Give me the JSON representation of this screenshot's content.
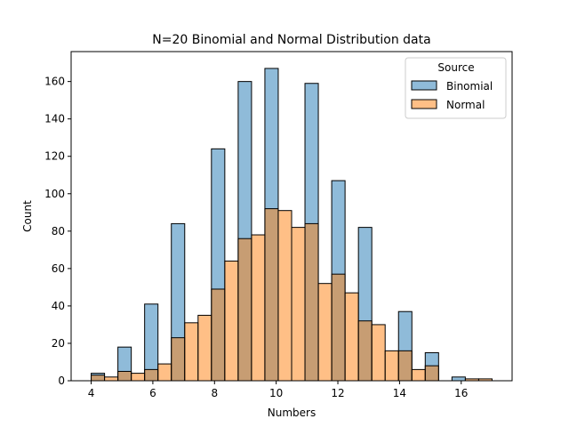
{
  "chart_data": {
    "type": "bar",
    "title": "N=20 Binomial and Normal Distribution data",
    "xlabel": "Numbers",
    "ylabel": "Count",
    "xlim": [
      3.35,
      17.65
    ],
    "ylim": [
      0,
      176
    ],
    "xticks": [
      4,
      6,
      8,
      10,
      12,
      14,
      16
    ],
    "yticks": [
      0,
      20,
      40,
      60,
      80,
      100,
      120,
      140,
      160
    ],
    "legend": {
      "title": "Source",
      "position": "top-right",
      "entries": [
        "Binomial",
        "Normal"
      ]
    },
    "grid": false,
    "bin_width": 0.4333,
    "series": [
      {
        "name": "Binomial",
        "color": "#1f77b4",
        "alpha": 0.5,
        "bins": [
          {
            "x": 4.0,
            "y": 4
          },
          {
            "x": 4.867,
            "y": 18
          },
          {
            "x": 5.733,
            "y": 41
          },
          {
            "x": 6.6,
            "y": 84
          },
          {
            "x": 7.9,
            "y": 124
          },
          {
            "x": 8.767,
            "y": 160
          },
          {
            "x": 9.633,
            "y": 167
          },
          {
            "x": 10.933,
            "y": 159
          },
          {
            "x": 11.8,
            "y": 107
          },
          {
            "x": 12.667,
            "y": 82
          },
          {
            "x": 13.967,
            "y": 37
          },
          {
            "x": 14.833,
            "y": 15
          },
          {
            "x": 15.7,
            "y": 2
          }
        ]
      },
      {
        "name": "Normal",
        "color": "#ff7f0e",
        "alpha": 0.5,
        "bins": [
          {
            "x": 4.0,
            "y": 3
          },
          {
            "x": 4.433,
            "y": 2
          },
          {
            "x": 4.867,
            "y": 5
          },
          {
            "x": 5.3,
            "y": 4
          },
          {
            "x": 5.733,
            "y": 6
          },
          {
            "x": 6.167,
            "y": 9
          },
          {
            "x": 6.6,
            "y": 23
          },
          {
            "x": 7.033,
            "y": 31
          },
          {
            "x": 7.467,
            "y": 35
          },
          {
            "x": 7.9,
            "y": 49
          },
          {
            "x": 8.333,
            "y": 64
          },
          {
            "x": 8.767,
            "y": 76
          },
          {
            "x": 9.2,
            "y": 78
          },
          {
            "x": 9.633,
            "y": 92
          },
          {
            "x": 10.067,
            "y": 91
          },
          {
            "x": 10.5,
            "y": 82
          },
          {
            "x": 10.933,
            "y": 84
          },
          {
            "x": 11.367,
            "y": 52
          },
          {
            "x": 11.8,
            "y": 57
          },
          {
            "x": 12.233,
            "y": 47
          },
          {
            "x": 12.667,
            "y": 32
          },
          {
            "x": 13.1,
            "y": 30
          },
          {
            "x": 13.533,
            "y": 16
          },
          {
            "x": 13.967,
            "y": 16
          },
          {
            "x": 14.4,
            "y": 6
          },
          {
            "x": 14.833,
            "y": 8
          },
          {
            "x": 15.267,
            "y": 0
          },
          {
            "x": 15.7,
            "y": 0
          },
          {
            "x": 16.133,
            "y": 1
          },
          {
            "x": 16.567,
            "y": 1
          }
        ]
      }
    ]
  }
}
